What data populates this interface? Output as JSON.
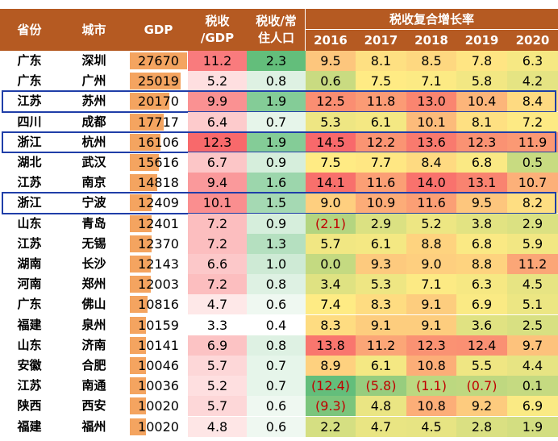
{
  "headers": {
    "province": "省份",
    "city": "城市",
    "gdp": "GDP",
    "tax_gdp": "税收\n/GDP",
    "tax_pop": "税收/常\n住人口",
    "growth_group": "税收复合增长率",
    "years": [
      "2016",
      "2017",
      "2018",
      "2019",
      "2020"
    ]
  },
  "rows": [
    {
      "province": "广东",
      "city": "深圳",
      "gdp": "27670",
      "tax_gdp": "11.2",
      "tax_pop": "2.3",
      "growth": [
        "9.5",
        "8.1",
        "8.5",
        "7.8",
        "6.3"
      ]
    },
    {
      "province": "广东",
      "city": "广州",
      "gdp": "25019",
      "tax_gdp": "5.2",
      "tax_pop": "0.8",
      "growth": [
        "0.6",
        "7.5",
        "7.1",
        "5.8",
        "4.2"
      ]
    },
    {
      "province": "江苏",
      "city": "苏州",
      "gdp": "20170",
      "tax_gdp": "9.9",
      "tax_pop": "1.9",
      "growth": [
        "12.5",
        "11.8",
        "13.0",
        "10.4",
        "8.4"
      ]
    },
    {
      "province": "四川",
      "city": "成都",
      "gdp": "17717",
      "tax_gdp": "6.4",
      "tax_pop": "0.7",
      "growth": [
        "5.3",
        "6.1",
        "10.1",
        "8.1",
        "7.2"
      ]
    },
    {
      "province": "浙江",
      "city": "杭州",
      "gdp": "16106",
      "tax_gdp": "12.3",
      "tax_pop": "1.9",
      "growth": [
        "14.5",
        "12.2",
        "13.6",
        "12.3",
        "11.9"
      ]
    },
    {
      "province": "湖北",
      "city": "武汉",
      "gdp": "15616",
      "tax_gdp": "6.7",
      "tax_pop": "0.9",
      "growth": [
        "7.5",
        "7.7",
        "8.4",
        "6.8",
        "0.5"
      ]
    },
    {
      "province": "江苏",
      "city": "南京",
      "gdp": "14818",
      "tax_gdp": "9.4",
      "tax_pop": "1.6",
      "growth": [
        "14.1",
        "11.6",
        "14.0",
        "13.1",
        "10.7"
      ]
    },
    {
      "province": "浙江",
      "city": "宁波",
      "gdp": "12409",
      "tax_gdp": "10.1",
      "tax_pop": "1.5",
      "growth": [
        "9.0",
        "10.9",
        "11.6",
        "9.5",
        "8.2"
      ]
    },
    {
      "province": "山东",
      "city": "青岛",
      "gdp": "12401",
      "tax_gdp": "7.2",
      "tax_pop": "0.9",
      "growth": [
        "(2.1)",
        "2.9",
        "5.2",
        "3.8",
        "2.9"
      ]
    },
    {
      "province": "江苏",
      "city": "无锡",
      "gdp": "12370",
      "tax_gdp": "7.2",
      "tax_pop": "1.3",
      "growth": [
        "5.7",
        "6.1",
        "8.8",
        "6.8",
        "5.9"
      ]
    },
    {
      "province": "湖南",
      "city": "长沙",
      "gdp": "12143",
      "tax_gdp": "6.6",
      "tax_pop": "1.0",
      "growth": [
        "0.0",
        "9.3",
        "9.0",
        "8.8",
        "11.2"
      ]
    },
    {
      "province": "河南",
      "city": "郑州",
      "gdp": "12003",
      "tax_gdp": "7.2",
      "tax_pop": "0.8",
      "growth": [
        "3.4",
        "5.3",
        "7.1",
        "6.3",
        "4.5"
      ]
    },
    {
      "province": "广东",
      "city": "佛山",
      "gdp": "10816",
      "tax_gdp": "4.7",
      "tax_pop": "0.6",
      "growth": [
        "7.4",
        "8.3",
        "9.1",
        "6.9",
        "5.1"
      ]
    },
    {
      "province": "福建",
      "city": "泉州",
      "gdp": "10159",
      "tax_gdp": "3.3",
      "tax_pop": "0.4",
      "growth": [
        "8.3",
        "9.1",
        "9.1",
        "3.6",
        "2.5"
      ]
    },
    {
      "province": "山东",
      "city": "济南",
      "gdp": "10141",
      "tax_gdp": "6.9",
      "tax_pop": "0.8",
      "growth": [
        "13.8",
        "11.2",
        "12.3",
        "12.4",
        "9.7"
      ]
    },
    {
      "province": "安徽",
      "city": "合肥",
      "gdp": "10046",
      "tax_gdp": "5.7",
      "tax_pop": "0.7",
      "growth": [
        "8.9",
        "6.1",
        "10.8",
        "5.5",
        "4.4"
      ]
    },
    {
      "province": "江苏",
      "city": "南通",
      "gdp": "10036",
      "tax_gdp": "5.2",
      "tax_pop": "0.7",
      "growth": [
        "(12.4)",
        "(5.8)",
        "(1.1)",
        "(0.7)",
        "0.1"
      ]
    },
    {
      "province": "陕西",
      "city": "西安",
      "gdp": "10020",
      "tax_gdp": "5.7",
      "tax_pop": "0.6",
      "growth": [
        "(9.3)",
        "4.8",
        "10.8",
        "9.2",
        "6.9"
      ]
    },
    {
      "province": "福建",
      "city": "福州",
      "gdp": "10020",
      "tax_gdp": "4.8",
      "tax_pop": "0.6",
      "growth": [
        "2.2",
        "4.7",
        "4.5",
        "2.8",
        "1.9"
      ]
    }
  ],
  "highlighted_cities": [
    "苏州",
    "杭州",
    "宁波"
  ],
  "colors": {
    "header_bg": "#B55A22",
    "header_text": "#FFFFFF",
    "gdp_bar": "#F4A460",
    "negative_text": "#C00000",
    "highlight_border": "#1F3EA8",
    "scale_low": "#63BE7B",
    "scale_mid": "#FFEB84",
    "scale_high": "#F8696B"
  }
}
